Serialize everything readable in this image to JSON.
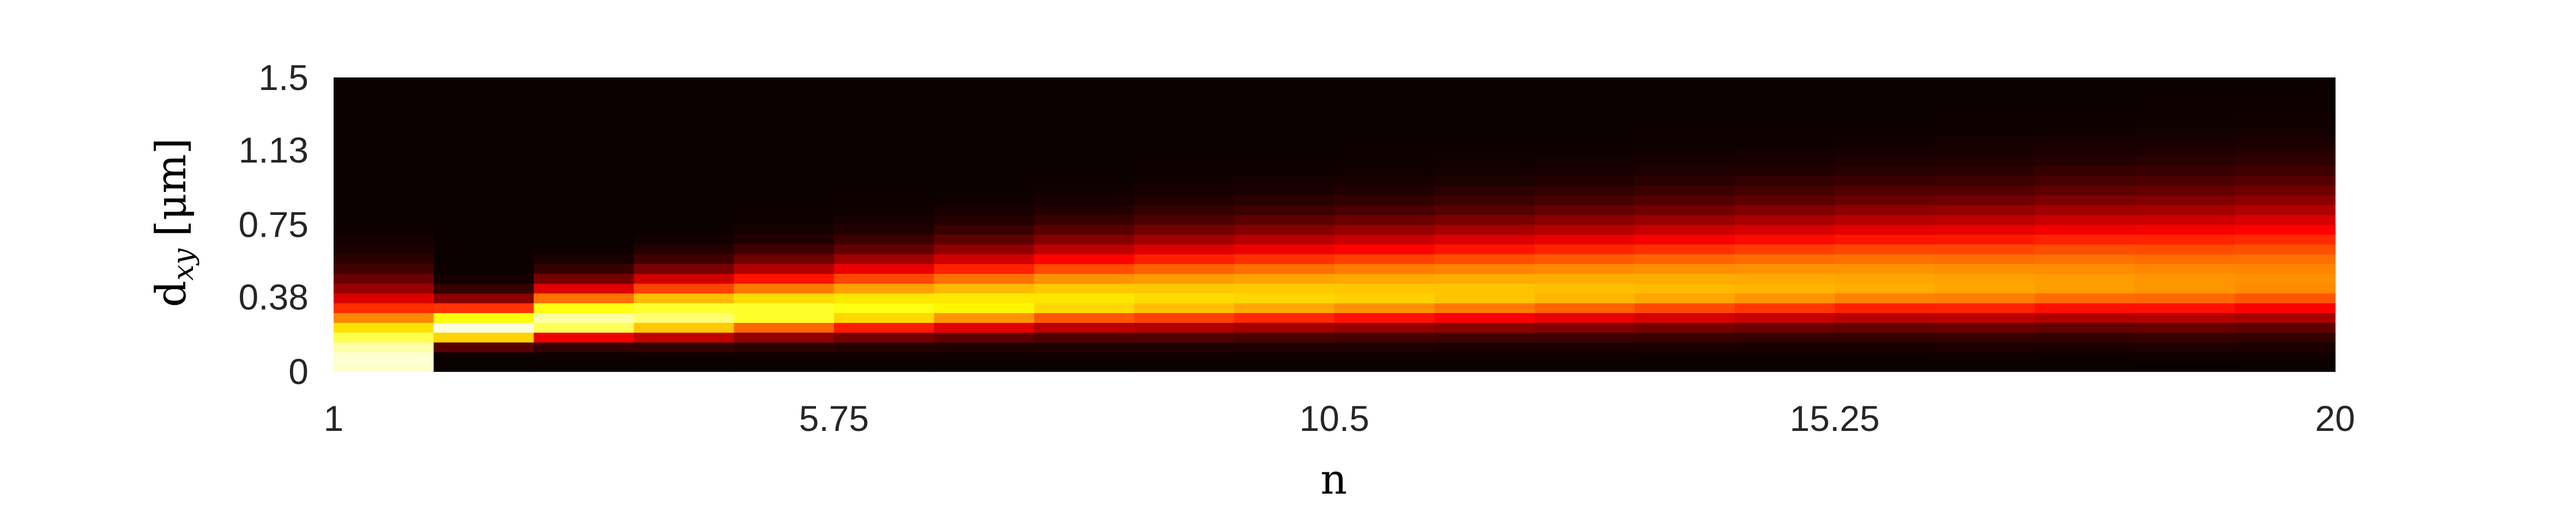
{
  "chart_data": {
    "type": "heatmap",
    "xlabel": "n",
    "ylabel_main": "d",
    "ylabel_sub": "xy",
    "ylabel_unit": "[μm]",
    "x_ticks": [
      "1",
      "5.75",
      "10.5",
      "15.25",
      "20"
    ],
    "y_ticks": [
      "0",
      "0.38",
      "0.75",
      "1.13",
      "1.5"
    ],
    "xlim": [
      1,
      20
    ],
    "ylim": [
      0,
      1.5
    ],
    "n_values": [
      1,
      2,
      3,
      4,
      5,
      6,
      7,
      8,
      9,
      10,
      11,
      12,
      13,
      14,
      15,
      16,
      17,
      18,
      19,
      20
    ],
    "y_bin_count": 30,
    "colormap": "hot",
    "intensity_scale": [
      0,
      1
    ],
    "distribution_per_n": {
      "peak_dxy": [
        0.06,
        0.21,
        0.25,
        0.27,
        0.29,
        0.31,
        0.33,
        0.35,
        0.36,
        0.37,
        0.38,
        0.39,
        0.4,
        0.41,
        0.42,
        0.43,
        0.43,
        0.44,
        0.44,
        0.45
      ],
      "peak_intensity": [
        0.96,
        0.98,
        0.93,
        0.86,
        0.81,
        0.77,
        0.74,
        0.72,
        0.7,
        0.69,
        0.68,
        0.67,
        0.66,
        0.65,
        0.64,
        0.63,
        0.62,
        0.61,
        0.6,
        0.59
      ],
      "spread_dxy": [
        0.3,
        0.13,
        0.17,
        0.2,
        0.22,
        0.24,
        0.26,
        0.28,
        0.3,
        0.31,
        0.32,
        0.33,
        0.34,
        0.35,
        0.36,
        0.37,
        0.38,
        0.39,
        0.4,
        0.41
      ]
    }
  }
}
